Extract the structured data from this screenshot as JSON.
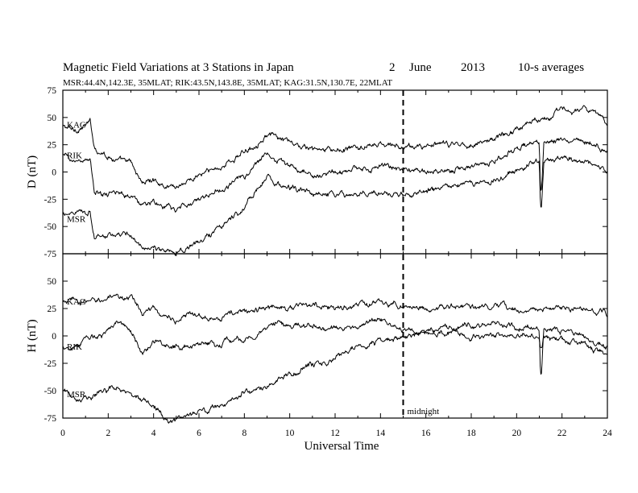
{
  "chart_data": {
    "type": "line",
    "title": "Magnetic Field Variations at 3 Stations in Japan",
    "title_date": {
      "day": "2",
      "month": "June",
      "year": "2013"
    },
    "title_note": "10-s averages",
    "subtitle": "MSR:44.4N,142.3E, 35MLAT;  RIK:43.5N,143.8E, 35MLAT;  KAG:31.5N,130.7E, 22MLAT",
    "xlabel": "Universal Time",
    "xlim": [
      0,
      24
    ],
    "x_ticks": [
      "0",
      "2",
      "4",
      "6",
      "8",
      "10",
      "12",
      "14",
      "16",
      "18",
      "20",
      "22",
      "24"
    ],
    "x_tick_values": [
      0,
      2,
      4,
      6,
      8,
      10,
      12,
      14,
      16,
      18,
      20,
      22,
      24
    ],
    "midnight_marker": {
      "x": 15,
      "label": "midnight",
      "style": "dashed"
    },
    "panels": [
      {
        "ylabel": "D (nT)",
        "ylim": [
          -75,
          75
        ],
        "y_ticks": [
          "75",
          "50",
          "25",
          "0",
          "-25",
          "-50",
          "-75"
        ],
        "y_tick_values": [
          75,
          50,
          25,
          0,
          -25,
          -50,
          -75
        ],
        "series": [
          {
            "name": "KAG",
            "x": [
              0,
              0.5,
              1.2,
              1.4,
              2,
              2.5,
              3,
              3.5,
              4,
              4.5,
              5,
              6,
              7,
              8,
              9,
              9.5,
              10,
              11,
              12,
              13,
              14,
              14.5,
              15,
              16,
              17,
              18,
              19,
              20,
              21,
              22,
              23,
              24
            ],
            "values": [
              42,
              38,
              45,
              22,
              15,
              10,
              8,
              -10,
              -7,
              -12,
              -13,
              -3,
              5,
              18,
              35,
              30,
              26,
              20,
              19,
              22,
              25,
              24,
              22,
              24,
              25,
              26,
              30,
              40,
              50,
              56,
              57,
              46
            ]
          },
          {
            "name": "RIK",
            "x": [
              0,
              0.5,
              1.2,
              1.4,
              2,
              2.5,
              3,
              3.5,
              4,
              4.5,
              5,
              6,
              7,
              8,
              9,
              9.5,
              10,
              11,
              12,
              13,
              14,
              14.5,
              15,
              16,
              17,
              18,
              19,
              20,
              20.9,
              21.0,
              21.05,
              21.1,
              21.2,
              22,
              23,
              24
            ],
            "values": [
              15,
              10,
              12,
              -20,
              -22,
              -18,
              -22,
              -30,
              -28,
              -33,
              -35,
              -25,
              -15,
              -5,
              18,
              10,
              5,
              -3,
              -2,
              2,
              5,
              3,
              2,
              0,
              3,
              5,
              10,
              20,
              28,
              28,
              -15,
              -15,
              28,
              30,
              30,
              20
            ]
          },
          {
            "name": "MSR",
            "x": [
              0,
              0.5,
              1.2,
              1.4,
              2,
              2.5,
              3,
              3.5,
              4,
              4.5,
              5,
              6,
              7,
              8,
              9,
              9.5,
              10,
              11,
              12,
              13,
              14,
              14.5,
              15,
              16,
              17,
              18,
              19,
              20,
              20.9,
              21.0,
              21.05,
              21.1,
              21.2,
              22,
              23,
              24
            ],
            "values": [
              -40,
              -35,
              -35,
              -60,
              -57,
              -60,
              -58,
              -68,
              -70,
              -74,
              -72,
              -65,
              -48,
              -33,
              -5,
              -12,
              -15,
              -20,
              -23,
              -20,
              -18,
              -20,
              -20,
              -18,
              -15,
              -12,
              -8,
              0,
              10,
              10,
              -30,
              -30,
              10,
              13,
              12,
              -1
            ]
          }
        ]
      },
      {
        "ylabel": "H (nT)",
        "ylim": [
          -75,
          75
        ],
        "y_ticks": [
          "75",
          "50",
          "25",
          "0",
          "-25",
          "-50",
          "-75"
        ],
        "y_tick_values": [
          75,
          50,
          25,
          0,
          -25,
          -50,
          -75
        ],
        "series": [
          {
            "name": "KAG",
            "x": [
              0,
              0.5,
              1,
              2,
              2.5,
              3,
              3.5,
              4,
              4.5,
              5,
              6,
              7,
              8,
              9,
              9.5,
              10,
              11,
              12,
              13,
              14,
              15,
              16,
              17,
              18,
              19,
              20,
              21,
              22,
              23,
              24
            ],
            "values": [
              30,
              32,
              30,
              35,
              32,
              38,
              20,
              25,
              18,
              15,
              20,
              18,
              22,
              25,
              27,
              26,
              28,
              25,
              28,
              30,
              28,
              25,
              26,
              27,
              25,
              25,
              24,
              25,
              24,
              20
            ]
          },
          {
            "name": "RIK",
            "x": [
              0,
              0.5,
              1,
              2,
              2.5,
              3,
              3.5,
              4,
              4.5,
              5,
              6,
              7,
              8,
              9,
              9.5,
              10,
              11,
              12,
              13,
              14,
              15,
              16,
              17,
              18,
              19,
              20,
              20.9,
              21.0,
              21.05,
              21.1,
              21.2,
              22,
              23,
              24
            ],
            "values": [
              -10,
              -10,
              -5,
              5,
              12,
              5,
              -15,
              -5,
              -8,
              -10,
              -8,
              -5,
              -3,
              5,
              12,
              8,
              10,
              5,
              10,
              15,
              5,
              5,
              8,
              10,
              10,
              8,
              8,
              8,
              -30,
              -30,
              8,
              5,
              2,
              -10
            ]
          },
          {
            "name": "MSR",
            "x": [
              0,
              0.5,
              1,
              2,
              2.5,
              3,
              3.5,
              4,
              4.5,
              5,
              6,
              7,
              8,
              9,
              9.5,
              10,
              11,
              12,
              13,
              14,
              15,
              16,
              17,
              18,
              19,
              20,
              20.9,
              21.0,
              21.05,
              21.1,
              21.2,
              22,
              23,
              24
            ],
            "values": [
              -50,
              -55,
              -55,
              -50,
              -45,
              -55,
              -60,
              -65,
              -75,
              -78,
              -70,
              -62,
              -52,
              -45,
              -38,
              -35,
              -28,
              -22,
              -12,
              -5,
              0,
              2,
              3,
              0,
              0,
              0,
              0,
              0,
              -10,
              -10,
              0,
              -5,
              -8,
              -18
            ]
          }
        ]
      }
    ]
  }
}
